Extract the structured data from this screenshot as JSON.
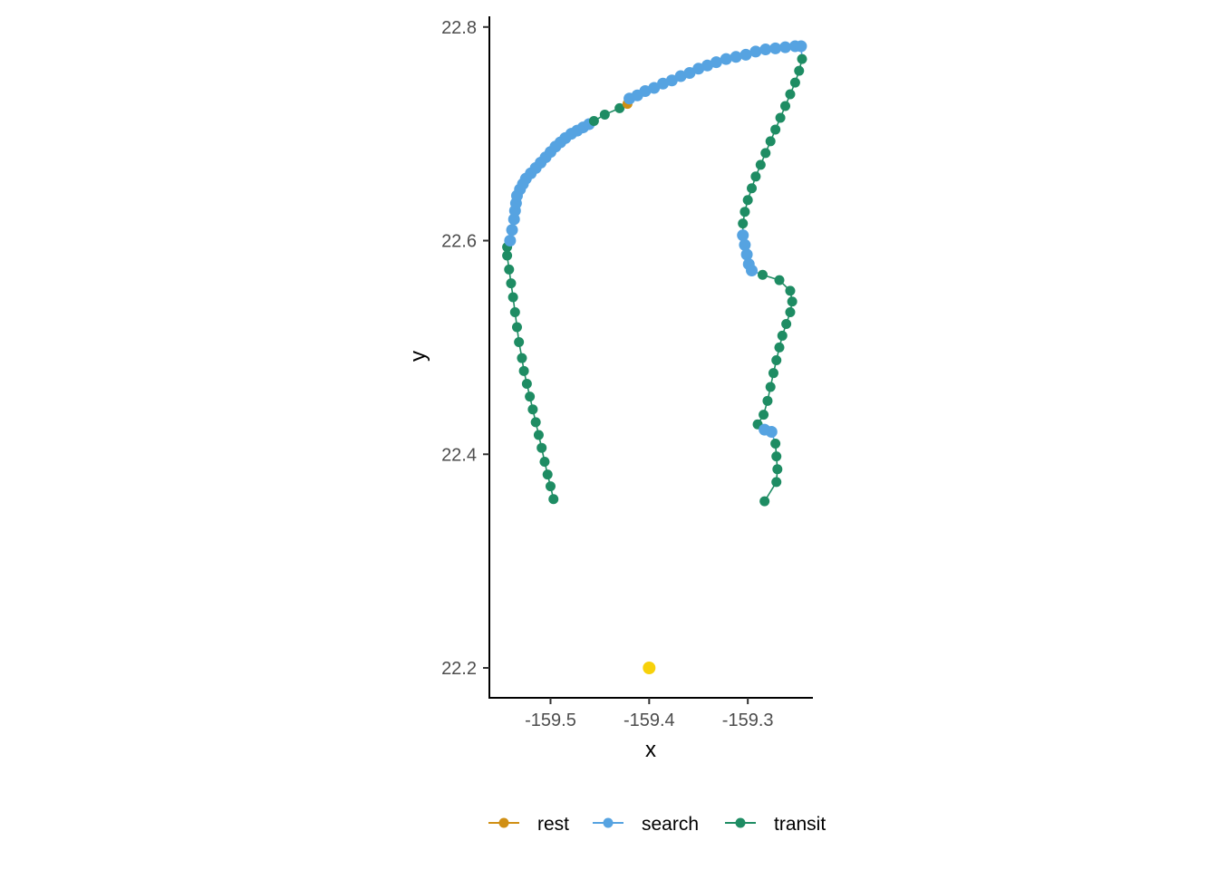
{
  "chart_data": {
    "type": "scatter",
    "title": "",
    "xlabel": "x",
    "ylabel": "y",
    "xlim": [
      -159.562,
      -159.234
    ],
    "ylim": [
      22.172,
      22.81
    ],
    "x_ticks": [
      {
        "value": -159.5,
        "label": "-159.5"
      },
      {
        "value": -159.4,
        "label": "-159.4"
      },
      {
        "value": -159.3,
        "label": "-159.3"
      }
    ],
    "y_ticks": [
      {
        "value": 22.2,
        "label": "22.2"
      },
      {
        "value": 22.4,
        "label": "22.4"
      },
      {
        "value": 22.6,
        "label": "22.6"
      },
      {
        "value": 22.8,
        "label": "22.8"
      }
    ],
    "grid": false,
    "legend_position": "bottom",
    "colors": {
      "rest": "#D08F14",
      "search": "#56A3E1",
      "transit": "#1E8C63"
    },
    "legend": [
      {
        "key": "rest",
        "label": "rest"
      },
      {
        "key": "search",
        "label": "search"
      },
      {
        "key": "transit",
        "label": "transit"
      }
    ],
    "extra_point": {
      "x": -159.4,
      "y": 22.2,
      "color": "#F7D10A"
    },
    "track": [
      {
        "x": -159.497,
        "y": 22.358,
        "state": "transit"
      },
      {
        "x": -159.5,
        "y": 22.37,
        "state": "transit"
      },
      {
        "x": -159.503,
        "y": 22.381,
        "state": "transit"
      },
      {
        "x": -159.506,
        "y": 22.393,
        "state": "transit"
      },
      {
        "x": -159.509,
        "y": 22.406,
        "state": "transit"
      },
      {
        "x": -159.512,
        "y": 22.418,
        "state": "transit"
      },
      {
        "x": -159.515,
        "y": 22.43,
        "state": "transit"
      },
      {
        "x": -159.518,
        "y": 22.442,
        "state": "transit"
      },
      {
        "x": -159.521,
        "y": 22.454,
        "state": "transit"
      },
      {
        "x": -159.524,
        "y": 22.466,
        "state": "transit"
      },
      {
        "x": -159.527,
        "y": 22.478,
        "state": "transit"
      },
      {
        "x": -159.529,
        "y": 22.49,
        "state": "transit"
      },
      {
        "x": -159.532,
        "y": 22.505,
        "state": "transit"
      },
      {
        "x": -159.534,
        "y": 22.519,
        "state": "transit"
      },
      {
        "x": -159.536,
        "y": 22.533,
        "state": "transit"
      },
      {
        "x": -159.538,
        "y": 22.547,
        "state": "transit"
      },
      {
        "x": -159.54,
        "y": 22.56,
        "state": "transit"
      },
      {
        "x": -159.542,
        "y": 22.573,
        "state": "transit"
      },
      {
        "x": -159.544,
        "y": 22.586,
        "state": "transit"
      },
      {
        "x": -159.544,
        "y": 22.594,
        "state": "transit"
      },
      {
        "x": -159.541,
        "y": 22.6,
        "state": "search"
      },
      {
        "x": -159.539,
        "y": 22.61,
        "state": "search"
      },
      {
        "x": -159.537,
        "y": 22.62,
        "state": "search"
      },
      {
        "x": -159.536,
        "y": 22.628,
        "state": "search"
      },
      {
        "x": -159.535,
        "y": 22.635,
        "state": "search"
      },
      {
        "x": -159.534,
        "y": 22.642,
        "state": "search"
      },
      {
        "x": -159.531,
        "y": 22.648,
        "state": "search"
      },
      {
        "x": -159.528,
        "y": 22.653,
        "state": "search"
      },
      {
        "x": -159.525,
        "y": 22.658,
        "state": "search"
      },
      {
        "x": -159.52,
        "y": 22.663,
        "state": "search"
      },
      {
        "x": -159.515,
        "y": 22.668,
        "state": "search"
      },
      {
        "x": -159.51,
        "y": 22.673,
        "state": "search"
      },
      {
        "x": -159.505,
        "y": 22.678,
        "state": "search"
      },
      {
        "x": -159.5,
        "y": 22.683,
        "state": "search"
      },
      {
        "x": -159.495,
        "y": 22.688,
        "state": "search"
      },
      {
        "x": -159.49,
        "y": 22.692,
        "state": "search"
      },
      {
        "x": -159.485,
        "y": 22.696,
        "state": "search"
      },
      {
        "x": -159.479,
        "y": 22.7,
        "state": "search"
      },
      {
        "x": -159.473,
        "y": 22.703,
        "state": "search"
      },
      {
        "x": -159.467,
        "y": 22.706,
        "state": "search"
      },
      {
        "x": -159.461,
        "y": 22.709,
        "state": "search"
      },
      {
        "x": -159.456,
        "y": 22.712,
        "state": "transit"
      },
      {
        "x": -159.445,
        "y": 22.718,
        "state": "transit"
      },
      {
        "x": -159.43,
        "y": 22.724,
        "state": "transit"
      },
      {
        "x": -159.422,
        "y": 22.728,
        "state": "rest"
      },
      {
        "x": -159.42,
        "y": 22.733,
        "state": "search"
      },
      {
        "x": -159.412,
        "y": 22.736,
        "state": "search"
      },
      {
        "x": -159.404,
        "y": 22.74,
        "state": "search"
      },
      {
        "x": -159.395,
        "y": 22.743,
        "state": "search"
      },
      {
        "x": -159.386,
        "y": 22.747,
        "state": "search"
      },
      {
        "x": -159.377,
        "y": 22.75,
        "state": "search"
      },
      {
        "x": -159.368,
        "y": 22.754,
        "state": "search"
      },
      {
        "x": -159.359,
        "y": 22.757,
        "state": "search"
      },
      {
        "x": -159.35,
        "y": 22.761,
        "state": "search"
      },
      {
        "x": -159.341,
        "y": 22.764,
        "state": "search"
      },
      {
        "x": -159.332,
        "y": 22.767,
        "state": "search"
      },
      {
        "x": -159.322,
        "y": 22.77,
        "state": "search"
      },
      {
        "x": -159.312,
        "y": 22.772,
        "state": "search"
      },
      {
        "x": -159.302,
        "y": 22.774,
        "state": "search"
      },
      {
        "x": -159.292,
        "y": 22.777,
        "state": "search"
      },
      {
        "x": -159.282,
        "y": 22.779,
        "state": "search"
      },
      {
        "x": -159.272,
        "y": 22.78,
        "state": "search"
      },
      {
        "x": -159.262,
        "y": 22.781,
        "state": "search"
      },
      {
        "x": -159.252,
        "y": 22.782,
        "state": "search"
      },
      {
        "x": -159.246,
        "y": 22.782,
        "state": "search"
      },
      {
        "x": -159.245,
        "y": 22.77,
        "state": "transit"
      },
      {
        "x": -159.248,
        "y": 22.759,
        "state": "transit"
      },
      {
        "x": -159.252,
        "y": 22.748,
        "state": "transit"
      },
      {
        "x": -159.257,
        "y": 22.737,
        "state": "transit"
      },
      {
        "x": -159.262,
        "y": 22.726,
        "state": "transit"
      },
      {
        "x": -159.267,
        "y": 22.715,
        "state": "transit"
      },
      {
        "x": -159.272,
        "y": 22.704,
        "state": "transit"
      },
      {
        "x": -159.277,
        "y": 22.693,
        "state": "transit"
      },
      {
        "x": -159.282,
        "y": 22.682,
        "state": "transit"
      },
      {
        "x": -159.287,
        "y": 22.671,
        "state": "transit"
      },
      {
        "x": -159.292,
        "y": 22.66,
        "state": "transit"
      },
      {
        "x": -159.296,
        "y": 22.649,
        "state": "transit"
      },
      {
        "x": -159.3,
        "y": 22.638,
        "state": "transit"
      },
      {
        "x": -159.303,
        "y": 22.627,
        "state": "transit"
      },
      {
        "x": -159.305,
        "y": 22.616,
        "state": "transit"
      },
      {
        "x": -159.305,
        "y": 22.605,
        "state": "search"
      },
      {
        "x": -159.303,
        "y": 22.596,
        "state": "search"
      },
      {
        "x": -159.301,
        "y": 22.587,
        "state": "search"
      },
      {
        "x": -159.299,
        "y": 22.578,
        "state": "search"
      },
      {
        "x": -159.296,
        "y": 22.572,
        "state": "search"
      },
      {
        "x": -159.285,
        "y": 22.568,
        "state": "transit"
      },
      {
        "x": -159.268,
        "y": 22.563,
        "state": "transit"
      },
      {
        "x": -159.257,
        "y": 22.553,
        "state": "transit"
      },
      {
        "x": -159.255,
        "y": 22.543,
        "state": "transit"
      },
      {
        "x": -159.257,
        "y": 22.533,
        "state": "transit"
      },
      {
        "x": -159.261,
        "y": 22.522,
        "state": "transit"
      },
      {
        "x": -159.265,
        "y": 22.511,
        "state": "transit"
      },
      {
        "x": -159.268,
        "y": 22.5,
        "state": "transit"
      },
      {
        "x": -159.271,
        "y": 22.488,
        "state": "transit"
      },
      {
        "x": -159.274,
        "y": 22.476,
        "state": "transit"
      },
      {
        "x": -159.277,
        "y": 22.463,
        "state": "transit"
      },
      {
        "x": -159.28,
        "y": 22.45,
        "state": "transit"
      },
      {
        "x": -159.284,
        "y": 22.437,
        "state": "transit"
      },
      {
        "x": -159.29,
        "y": 22.428,
        "state": "transit"
      },
      {
        "x": -159.283,
        "y": 22.423,
        "state": "search"
      },
      {
        "x": -159.276,
        "y": 22.421,
        "state": "search"
      },
      {
        "x": -159.272,
        "y": 22.41,
        "state": "transit"
      },
      {
        "x": -159.271,
        "y": 22.398,
        "state": "transit"
      },
      {
        "x": -159.27,
        "y": 22.386,
        "state": "transit"
      },
      {
        "x": -159.271,
        "y": 22.374,
        "state": "transit"
      },
      {
        "x": -159.283,
        "y": 22.356,
        "state": "transit"
      }
    ]
  }
}
